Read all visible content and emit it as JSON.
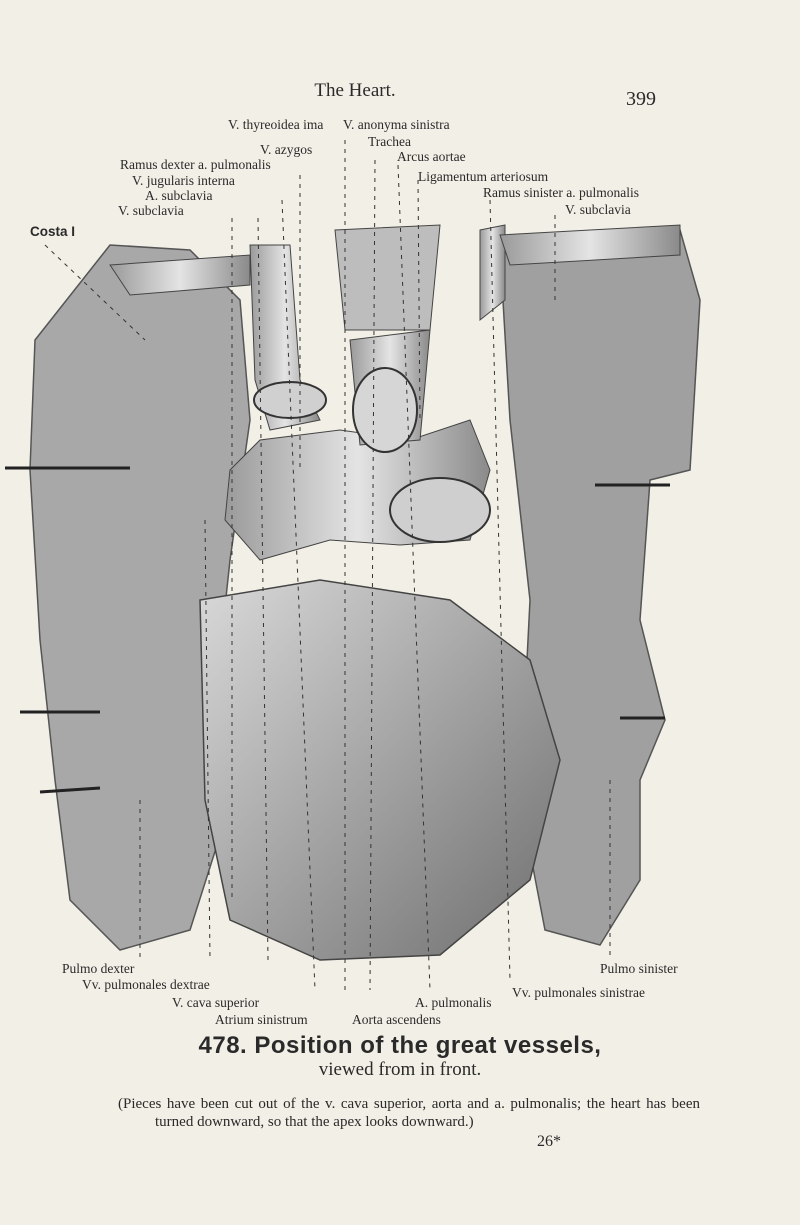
{
  "header": {
    "title": "The Heart.",
    "page_number": "399"
  },
  "figure": {
    "labels": [
      "V. thyreoidea ima",
      "V. anonyma sinistra",
      "Trachea",
      "V. azygos",
      "Arcus aortae",
      "Ramus dexter a. pulmonalis",
      "V. jugularis interna",
      "Ligamentum arteriosum",
      "A. subclavia",
      "Ramus sinister a. pulmonalis",
      "V. subclavia",
      "V. subclavia",
      "Costa I",
      "Pulmo dexter",
      "Pulmo sinister",
      "Vv. pulmonales dextrae",
      "Vv. pulmonales sinistrae",
      "V. cava superior",
      "A. pulmonalis",
      "Atrium sinistrum",
      "Aorta ascendens"
    ]
  },
  "caption": {
    "title": "478. Position of the great vessels,",
    "subtitle": "viewed from in front."
  },
  "note": "(Pieces have been cut out of the v. cava superior, aorta and a. pulmonalis; the heart has been turned downward, so that the apex looks downward.)",
  "footer": "26*"
}
